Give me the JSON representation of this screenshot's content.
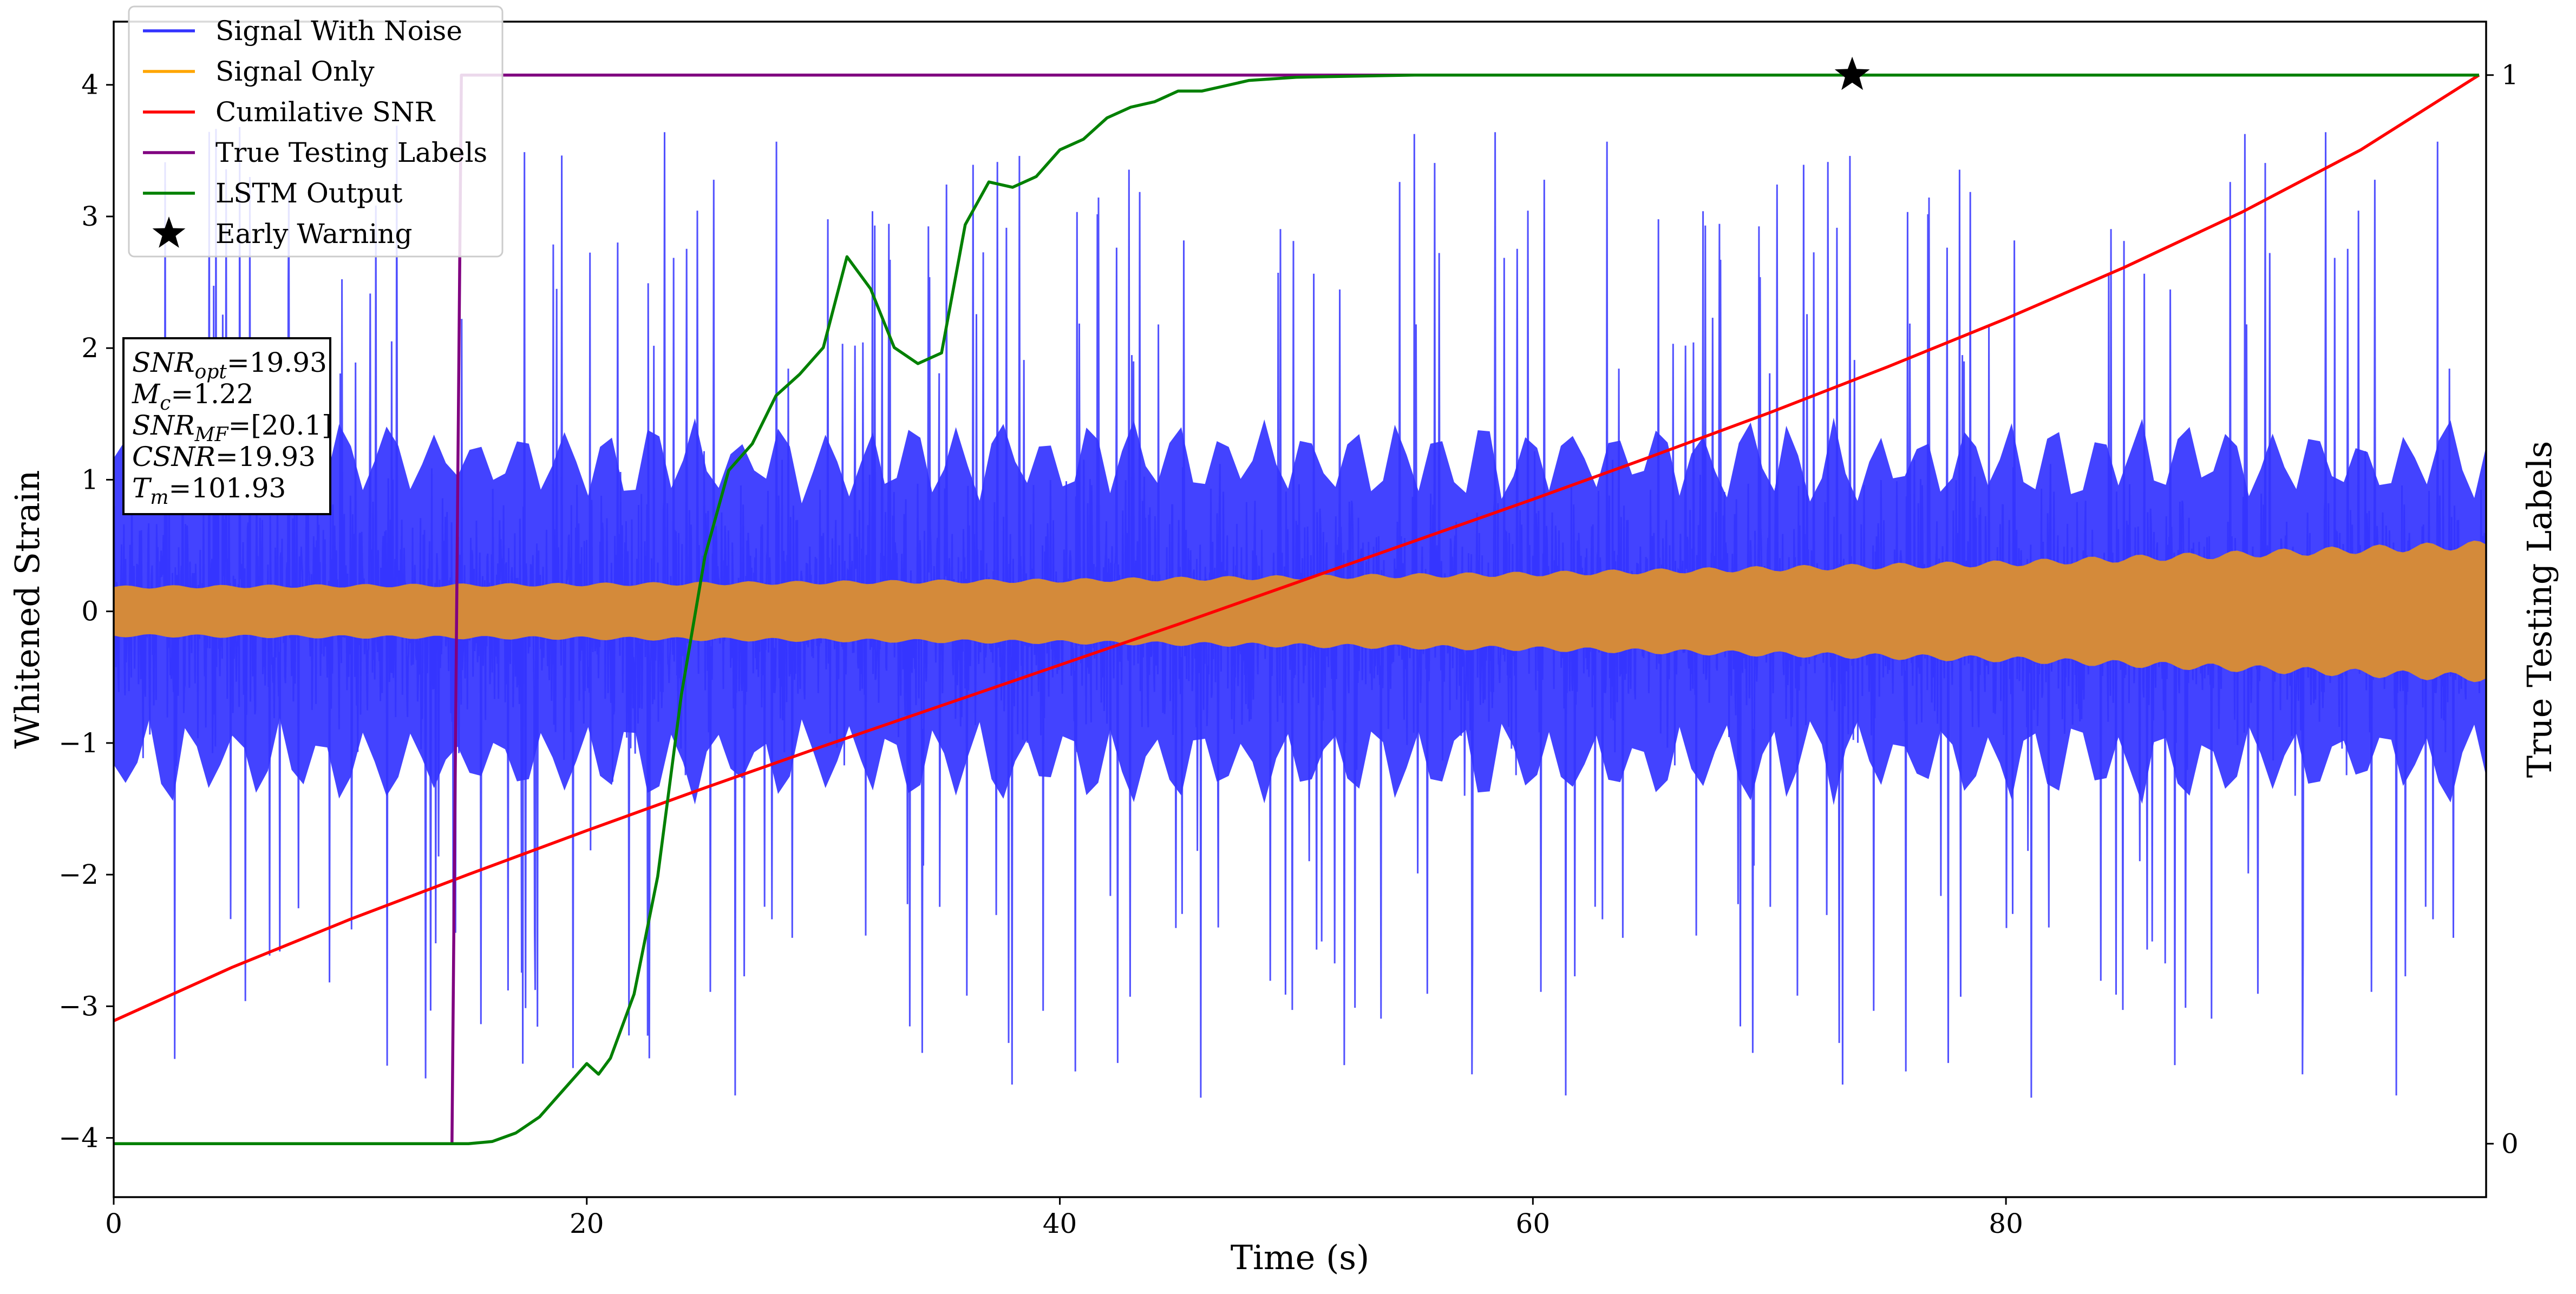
{
  "chart_data": {
    "type": "line",
    "xlabel": "Time (s)",
    "ylabel": "Whitened Strain",
    "y2label": "True Testing Labels",
    "xlim": [
      0,
      100.3
    ],
    "ylim": [
      -4.45,
      4.48
    ],
    "y2lim": [
      -0.05,
      1.05
    ],
    "x_ticks": [
      0,
      20,
      40,
      60,
      80
    ],
    "x_tick_labels": [
      "0",
      "20",
      "40",
      "60",
      "80"
    ],
    "y_ticks": [
      -4,
      -3,
      -2,
      -1,
      0,
      1,
      2,
      3,
      4
    ],
    "y_tick_labels": [
      "−4",
      "−3",
      "−2",
      "−1",
      "0",
      "1",
      "2",
      "3",
      "4"
    ],
    "y2_ticks": [
      0,
      1
    ],
    "y2_tick_labels": [
      "0",
      "1"
    ],
    "grid": false,
    "legend_position": "top-left",
    "series": [
      {
        "name": "Signal With Noise",
        "axis": "left",
        "color": "#3333ff",
        "style": "dense oscillating noise, core band about ±1.3, spikes up to about ±3.7"
      },
      {
        "name": "Signal Only",
        "axis": "left",
        "color": "#ffa500",
        "envelope_x": [
          0,
          20,
          40,
          60,
          80,
          100
        ],
        "envelope_amplitude": [
          0.18,
          0.2,
          0.23,
          0.28,
          0.36,
          0.5
        ]
      },
      {
        "name": "Cumilative SNR",
        "axis": "right",
        "color": "#ff0000",
        "x": [
          0,
          5,
          10,
          15,
          20,
          25,
          30,
          35,
          40,
          45,
          50,
          55,
          60,
          65,
          70,
          75,
          80,
          85,
          90,
          95,
          100
        ],
        "y": [
          0.115,
          0.165,
          0.21,
          0.252,
          0.293,
          0.333,
          0.372,
          0.41,
          0.448,
          0.486,
          0.525,
          0.564,
          0.603,
          0.643,
          0.684,
          0.727,
          0.772,
          0.82,
          0.872,
          0.93,
          1.0
        ]
      },
      {
        "name": "True Testing Labels",
        "axis": "right",
        "color": "#800080",
        "x": [
          0,
          14.3,
          14.7,
          100
        ],
        "y": [
          0,
          0,
          1,
          1
        ]
      },
      {
        "name": "LSTM Output",
        "axis": "right",
        "color": "#008000",
        "x": [
          0,
          15,
          16,
          17,
          18,
          19,
          20,
          20.5,
          21,
          22,
          23,
          24,
          25,
          26,
          27,
          28,
          29,
          30,
          31,
          32,
          33,
          34,
          35,
          36,
          37,
          38,
          39,
          40,
          41,
          42,
          43,
          44,
          45,
          46,
          47,
          48,
          50,
          55,
          60,
          100
        ],
        "y": [
          0,
          0,
          0.002,
          0.01,
          0.025,
          0.05,
          0.075,
          0.065,
          0.08,
          0.14,
          0.25,
          0.42,
          0.55,
          0.63,
          0.655,
          0.7,
          0.72,
          0.745,
          0.83,
          0.8,
          0.745,
          0.73,
          0.74,
          0.86,
          0.9,
          0.895,
          0.905,
          0.93,
          0.94,
          0.96,
          0.97,
          0.975,
          0.985,
          0.985,
          0.99,
          0.995,
          0.998,
          1.0,
          1.0,
          1.0
        ]
      }
    ],
    "markers": [
      {
        "name": "Early Warning",
        "axis": "right",
        "color": "#000000",
        "symbol": "star",
        "x": 73.5,
        "y": 1.0
      }
    ],
    "info_box": {
      "lines": [
        {
          "base": "SNR",
          "sub": "opt",
          "rest": "=19.93"
        },
        {
          "base": "M",
          "sub": "c",
          "rest": "=1.22"
        },
        {
          "base": "SNR",
          "sub": "MF",
          "rest": "=[20.1]"
        },
        {
          "base": "CSNR",
          "sub": "",
          "rest": "=19.93"
        },
        {
          "base": "T",
          "sub": "m",
          "rest": "=101.93"
        }
      ]
    }
  }
}
